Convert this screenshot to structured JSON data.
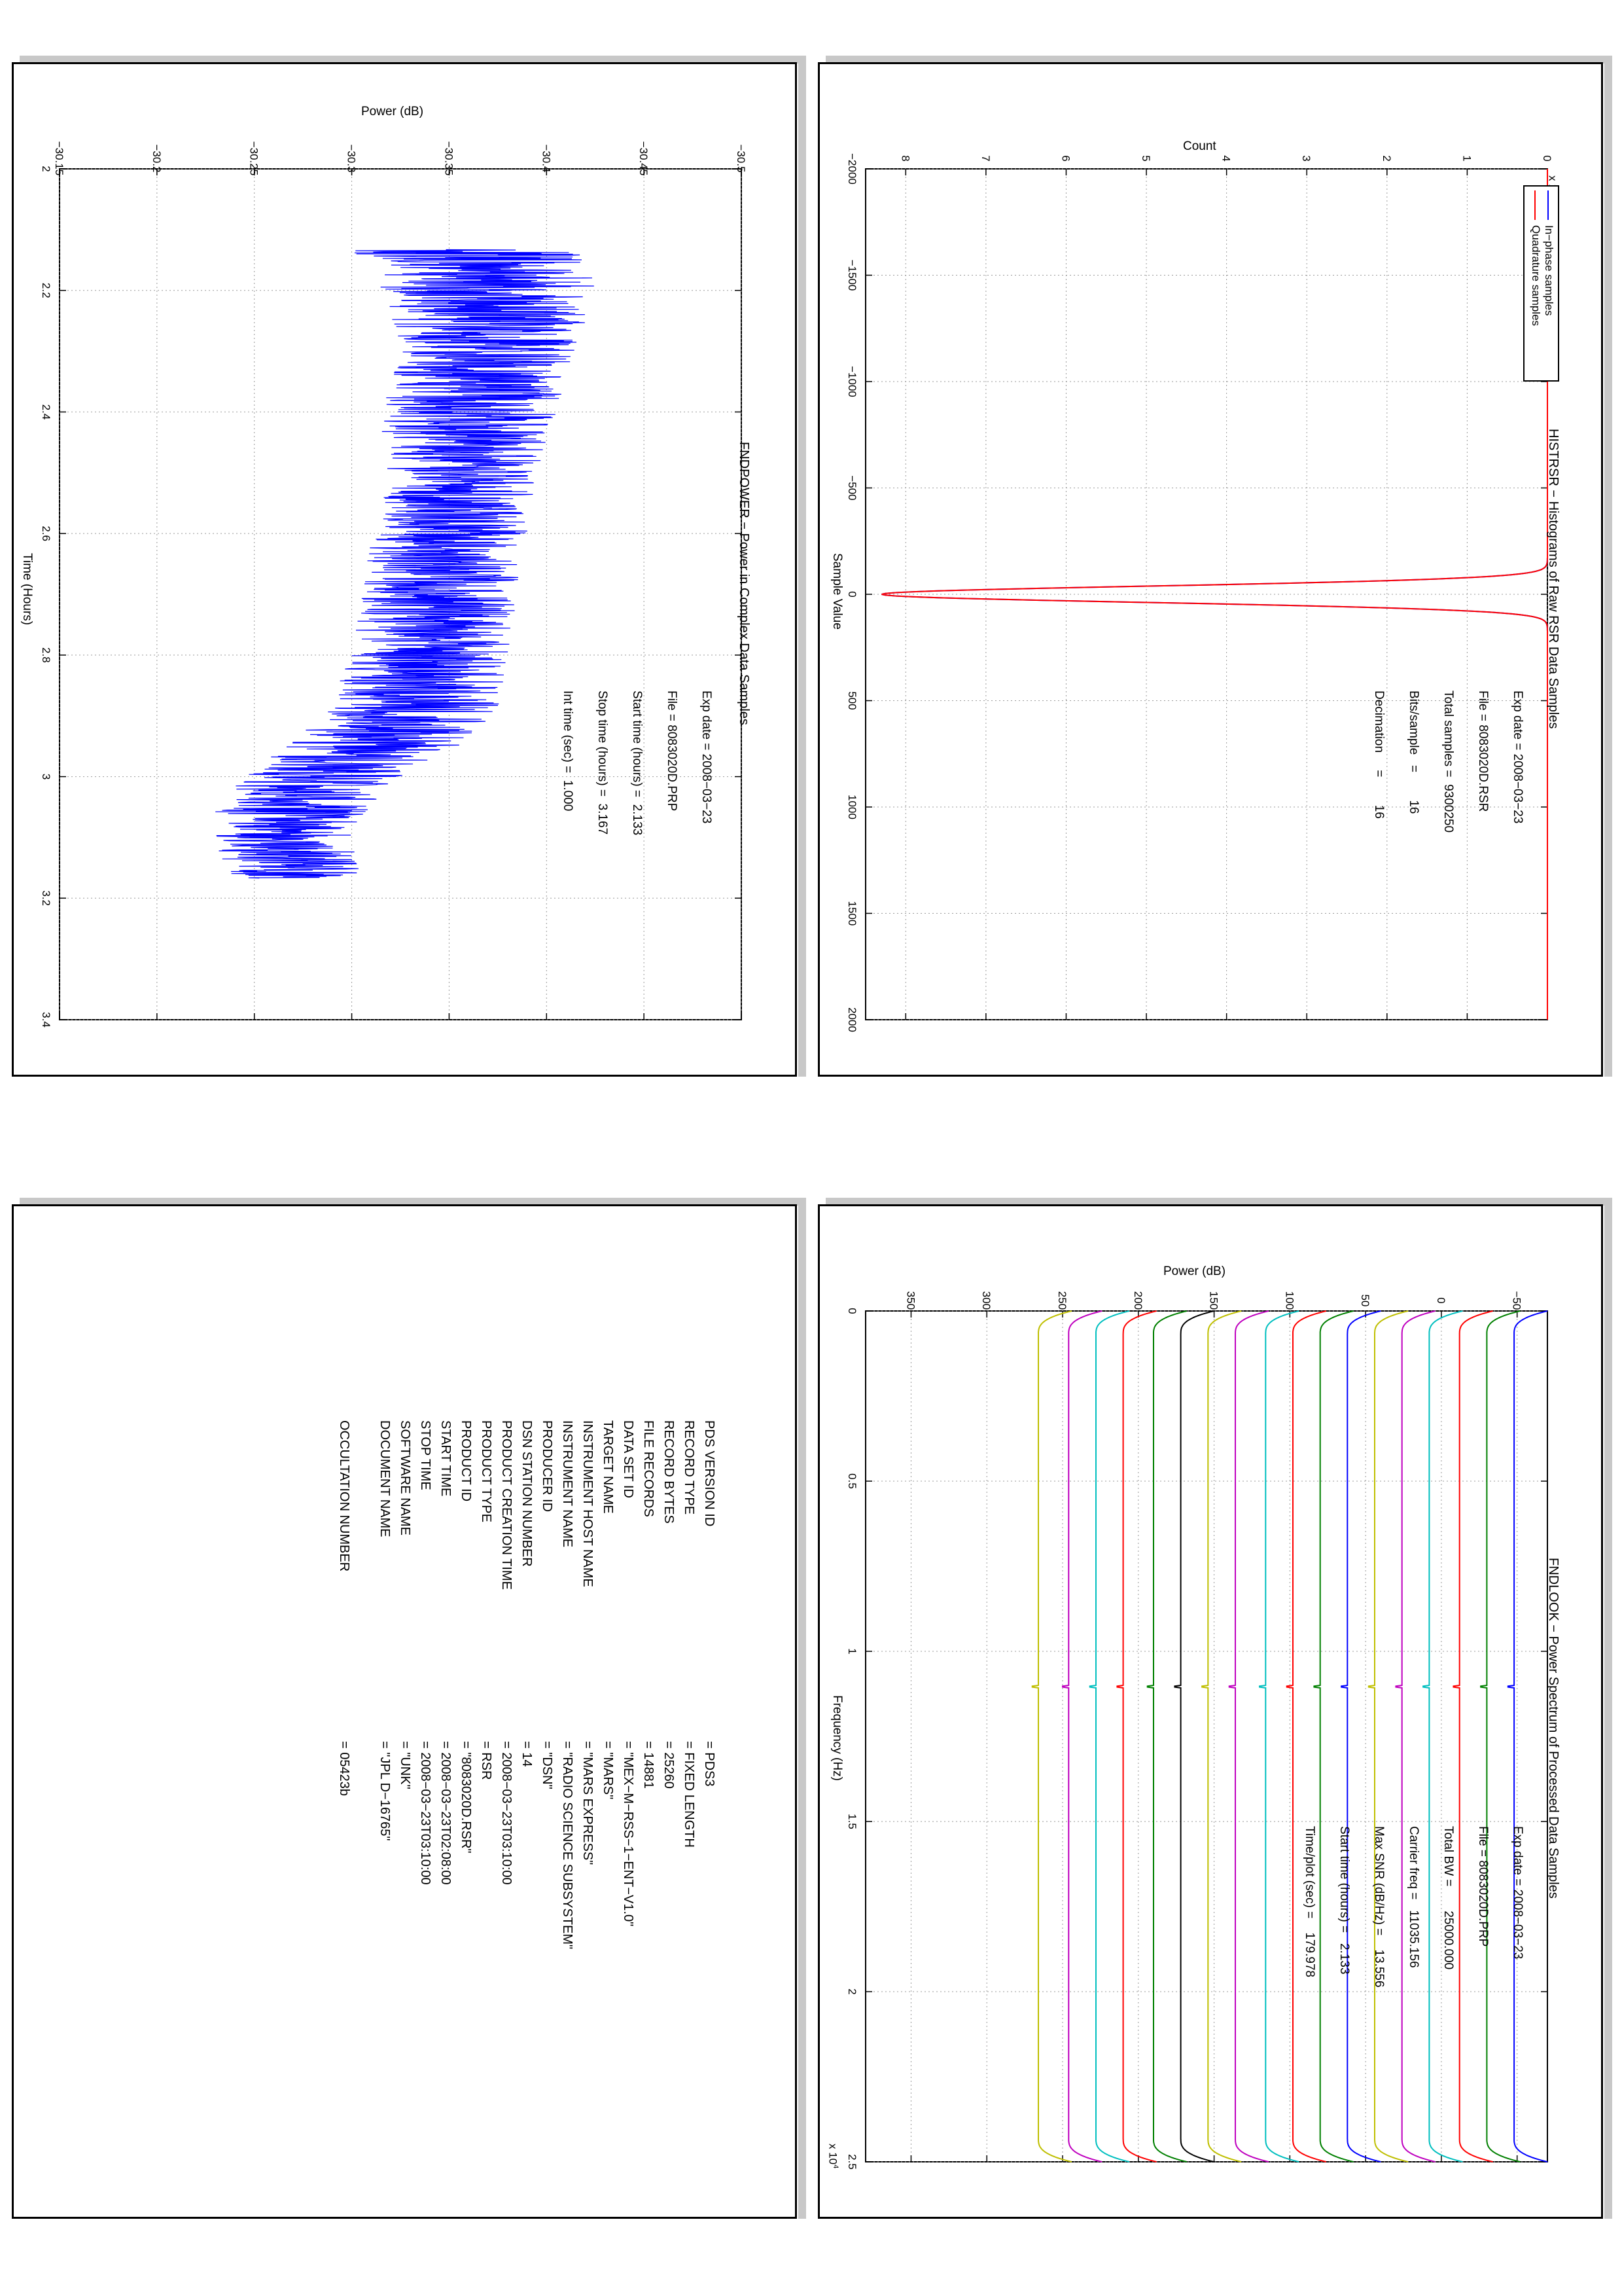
{
  "histrsr": {
    "title": "HISTRSR − Histograms of Raw RSR Data Samples",
    "xlabel": "Sample Value",
    "ylabel": "Count",
    "y_multiplier": "x 10",
    "y_exponent": "5",
    "info": [
      "Exp date = 2008−03−23",
      "File = 8083020D.RSR",
      "Total samples =  9300250",
      "Bits/sample   =        16",
      "Decimation     =        16"
    ],
    "legend": [
      "In−phase samples",
      "Quadrature samples"
    ]
  },
  "fndpower": {
    "title": "FNDPOWER − Power in Complex Data Samples",
    "xlabel": "Time (Hours)",
    "ylabel": "Power (dB)",
    "info": [
      "Exp date = 2008−03−23",
      "File = 8083020D.PRP",
      "Start time (hours) =  2.133",
      "Stop time (hours) =  3.167",
      "Int time (sec) =  1.000"
    ]
  },
  "fndlook": {
    "title": "FNDLOOK − Power Spectrum of Processed Data Samples",
    "xlabel": "Frequency (Hz)",
    "ylabel": "Power (dB)",
    "x_multiplier": "x 10",
    "x_exponent": "4",
    "info": [
      "Exp date = 2008−03−23",
      "File = 8083020D.PRP",
      "Total BW =       25000.000",
      "Carrier freq =   11035.156",
      "Max SNR (dB/Hz) =    13.556",
      "Start time (hours) =   2.133",
      "Time/plot (sec) =    179.978"
    ]
  },
  "pds": {
    "labels": [
      "PDS VERSION ID",
      "RECORD TYPE",
      "RECORD BYTES",
      "FILE RECORDS",
      "DATA SET ID",
      "TARGET NAME",
      "INSTRUMENT HOST NAME",
      "INSTRUMENT NAME",
      "PRODUCER ID",
      "DSN STATION NUMBER",
      "PRODUCT CREATION TIME",
      "PRODUCT TYPE",
      "PRODUCT ID",
      "START TIME",
      "STOP TIME",
      "SOFTWARE NAME",
      "DOCUMENT NAME",
      "",
      "OCCULTATION NUMBER"
    ],
    "values": [
      "=  PDS3",
      "=  FIXED LENGTH",
      "=  25260",
      "=  14881",
      "=  \"MEX−M−RSS−1−ENT−V1.0\"",
      "=  \"MARS\"",
      "=  \"MARS EXPRESS\"",
      "=  \"RADIO SCIENCE SUBSYSTEM\"",
      "=  \"DSN\"",
      "=  14",
      "=  2008−03−23T03:10:00",
      "=  RSR",
      "=  \"8083020D.RSR\"",
      "=  2008−03−23T02:08:00",
      "=  2008−03−23T03:10:00",
      "=  \"UNK\"",
      "=  \"JPL D−16765\"",
      "",
      "=  05423b"
    ]
  },
  "chart_data": [
    {
      "type": "line",
      "title": "HISTRSR − Histograms of Raw RSR Data Samples",
      "xlabel": "Sample Value",
      "ylabel": "Count",
      "xlim": [
        -2000,
        2000
      ],
      "ylim": [
        0,
        850000
      ],
      "x_ticks": [
        -2000,
        -1500,
        -1000,
        -500,
        0,
        500,
        1000,
        1500,
        2000
      ],
      "y_ticks": [
        0,
        1,
        2,
        3,
        4,
        5,
        6,
        7,
        8
      ],
      "y_scale_label": "x 10^5",
      "grid": true,
      "legend_position": "top-left",
      "series": [
        {
          "name": "In−phase samples",
          "color": "#0000ff",
          "peak_x": 0,
          "peak_count": 830000,
          "sigma": 38
        },
        {
          "name": "Quadrature samples",
          "color": "#ff0000",
          "peak_x": 0,
          "peak_count": 830000,
          "sigma": 38
        }
      ]
    },
    {
      "type": "line",
      "title": "FNDPOWER − Power in Complex Data Samples",
      "xlabel": "Time (Hours)",
      "ylabel": "Power (dB)",
      "xlim": [
        2,
        3.4
      ],
      "ylim": [
        -30.5,
        -30.15
      ],
      "x_ticks": [
        2,
        2.2,
        2.4,
        2.6,
        2.8,
        3,
        3.2,
        3.4
      ],
      "y_ticks": [
        -30.5,
        -30.45,
        -30.4,
        -30.35,
        -30.3,
        -30.25,
        -30.2,
        -30.15
      ],
      "grid": true,
      "series": [
        {
          "name": "",
          "color": "#0000ff",
          "x": [
            2.133,
            2.2,
            2.3,
            2.4,
            2.5,
            2.6,
            2.7,
            2.8,
            2.9,
            2.95,
            3.0,
            3.05,
            3.1,
            3.167
          ],
          "y_center": [
            -30.36,
            -30.37,
            -30.37,
            -30.36,
            -30.355,
            -30.35,
            -30.345,
            -30.34,
            -30.33,
            -30.31,
            -30.285,
            -30.27,
            -30.265,
            -30.27
          ],
          "y_spread": [
            0.06,
            0.055,
            0.045,
            0.045,
            0.04,
            0.04,
            0.04,
            0.04,
            0.045,
            0.045,
            0.04,
            0.04,
            0.035,
            0.035
          ]
        }
      ]
    },
    {
      "type": "line",
      "title": "FNDLOOK − Power Spectrum of Processed Data Samples",
      "xlabel": "Frequency (Hz)",
      "ylabel": "Power (dB)",
      "xlim": [
        0,
        25000
      ],
      "ylim": [
        -70,
        380
      ],
      "x_ticks": [
        0,
        0.5,
        1,
        1.5,
        2,
        2.5
      ],
      "x_scale_label": "x 10^4",
      "y_ticks": [
        -50,
        0,
        50,
        100,
        150,
        200,
        250,
        300,
        350
      ],
      "grid": true,
      "series": [
        {
          "color": "#0000ff",
          "level": -48
        },
        {
          "color": "#008000",
          "level": -30
        },
        {
          "color": "#ff0000",
          "level": -12
        },
        {
          "color": "#00bfbf",
          "level": 8
        },
        {
          "color": "#bf00bf",
          "level": 26
        },
        {
          "color": "#bfbf00",
          "level": 44
        },
        {
          "color": "#0000ff",
          "level": 62
        },
        {
          "color": "#008000",
          "level": 80
        },
        {
          "color": "#ff0000",
          "level": 98
        },
        {
          "color": "#00bfbf",
          "level": 116
        },
        {
          "color": "#bf00bf",
          "level": 136
        },
        {
          "color": "#bfbf00",
          "level": 154
        },
        {
          "color": "#000000",
          "level": 172
        },
        {
          "color": "#008000",
          "level": 190
        },
        {
          "color": "#ff0000",
          "level": 210
        },
        {
          "color": "#00bfbf",
          "level": 228
        },
        {
          "color": "#bf00bf",
          "level": 246
        },
        {
          "color": "#bfbf00",
          "level": 266
        }
      ],
      "carrier_x": 11035,
      "rolloff_width_hz": 700
    }
  ]
}
